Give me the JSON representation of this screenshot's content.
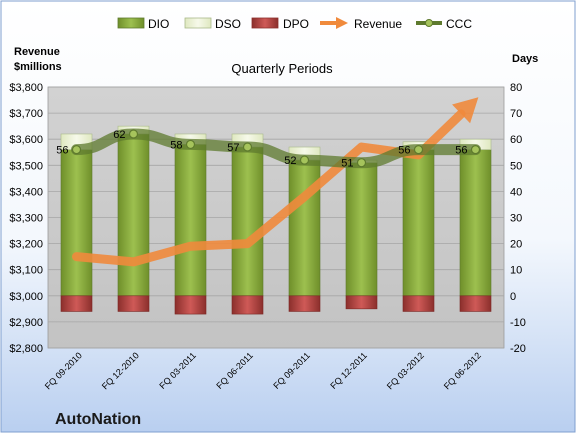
{
  "chart_data": {
    "type": "bar",
    "title": "Quarterly Periods",
    "company": "AutoNation",
    "categories": [
      "FQ 09-2010",
      "FQ 12-2010",
      "FQ 03-2011",
      "FQ 06-2011",
      "FQ 09-2011",
      "FQ 12-2011",
      "FQ 03-2012",
      "FQ 06-2012"
    ],
    "series": [
      {
        "name": "DIO",
        "kind": "bar",
        "axis": "right",
        "values": [
          56,
          62,
          58,
          57,
          52,
          51,
          56,
          56
        ]
      },
      {
        "name": "DSO",
        "kind": "bar-stacked",
        "axis": "right",
        "values": [
          6,
          3,
          4,
          5,
          5,
          1,
          3,
          4
        ]
      },
      {
        "name": "DPO",
        "kind": "bar-negative",
        "axis": "right",
        "values": [
          -6,
          -6,
          -7,
          -7,
          -6,
          -5,
          -6,
          -6
        ]
      },
      {
        "name": "Revenue",
        "kind": "arrow-line",
        "axis": "left",
        "values": [
          3150,
          3130,
          3190,
          3200,
          3380,
          3570,
          3540,
          3750
        ]
      },
      {
        "name": "CCC",
        "kind": "line",
        "axis": "right",
        "values": [
          56,
          62,
          58,
          57,
          52,
          51,
          56,
          56
        ]
      }
    ],
    "left_axis": {
      "title_line1": "Revenue",
      "title_line2": "$millions",
      "min": 2800,
      "max": 3800,
      "step": 100,
      "tick_labels": [
        "$2,800",
        "$2,900",
        "$3,000",
        "$3,100",
        "$3,200",
        "$3,300",
        "$3,400",
        "$3,500",
        "$3,600",
        "$3,700",
        "$3,800"
      ]
    },
    "right_axis": {
      "title": "Days",
      "min": -20,
      "max": 80,
      "step": 10,
      "tick_labels": [
        "-20",
        "-10",
        "0",
        "10",
        "20",
        "30",
        "40",
        "50",
        "60",
        "70",
        "80"
      ]
    },
    "legend": {
      "placement": "top"
    },
    "grid": true,
    "colors": {
      "dio": "#8fb04a",
      "dso": "#eef3d6",
      "dpo": "#c0504d",
      "revenue": "#f08a3c",
      "ccc": "#5e7a2e",
      "plot_bg": "#cccccc",
      "page_bg_top": "#ffffff",
      "page_bg_bottom": "#bcd2ee"
    }
  }
}
